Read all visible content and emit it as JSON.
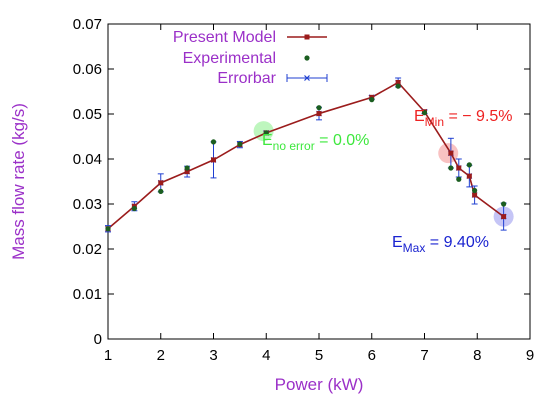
{
  "chart_data": {
    "type": "line",
    "xlabel": "Power (kW)",
    "ylabel": "Mass flow rate (kg/s)",
    "xlim": [
      1,
      9
    ],
    "ylim": [
      0,
      0.07
    ],
    "x_ticks": [
      "1",
      "2",
      "3",
      "4",
      "5",
      "6",
      "7",
      "8",
      "9"
    ],
    "y_ticks": [
      "0",
      "0.01",
      "0.02",
      "0.03",
      "0.04",
      "0.05",
      "0.06",
      "0.07"
    ],
    "series": [
      {
        "name": "Present Model",
        "color": "#9b1c1c",
        "x": [
          1.0,
          1.5,
          2.0,
          2.5,
          3.0,
          3.5,
          4.0,
          5.0,
          6.0,
          6.5,
          7.0,
          7.5,
          7.65,
          7.85,
          7.95,
          8.5
        ],
        "y": [
          0.0245,
          0.0295,
          0.0347,
          0.0372,
          0.0398,
          0.0432,
          0.0458,
          0.0501,
          0.0537,
          0.057,
          0.0505,
          0.0413,
          0.038,
          0.0362,
          0.032,
          0.0272
        ]
      },
      {
        "name": "Experimental",
        "color": "#1b5e20",
        "x": [
          1.0,
          1.5,
          2.0,
          2.5,
          3.0,
          3.5,
          4.0,
          5.0,
          6.0,
          6.5,
          7.0,
          7.5,
          7.65,
          7.85,
          7.95,
          8.5
        ],
        "y": [
          0.0245,
          0.029,
          0.0328,
          0.038,
          0.0438,
          0.0433,
          0.0458,
          0.0514,
          0.0532,
          0.0562,
          0.0503,
          0.038,
          0.0355,
          0.0387,
          0.033,
          0.03
        ]
      },
      {
        "name": "Errorbar",
        "color": "#1f3fd1",
        "x": [
          1.0,
          1.5,
          2.0,
          2.5,
          3.0,
          3.5,
          4.0,
          5.0,
          6.0,
          6.5,
          7.0,
          7.5,
          7.65,
          7.85,
          7.95,
          8.5
        ],
        "y": [
          0.0245,
          0.0295,
          0.0347,
          0.0372,
          0.0398,
          0.0432,
          0.0458,
          0.0501,
          0.0537,
          0.057,
          0.0505,
          0.0413,
          0.038,
          0.0362,
          0.032,
          0.0272
        ],
        "err": [
          0.0007,
          0.001,
          0.002,
          0.0012,
          0.004,
          0.0007,
          0.0004,
          0.0014,
          0.0004,
          0.001,
          0.0004,
          0.0033,
          0.002,
          0.0024,
          0.002,
          0.003
        ]
      }
    ],
    "annotations": [
      {
        "label": "E",
        "sub": "no error",
        "value": "= 0.0%",
        "x": 3.95,
        "y": 0.0462,
        "color": "#3ee83e",
        "halo": "rgba(70,230,70,0.35)"
      },
      {
        "label": "E",
        "sub": "Min",
        "value": "= − 9.5%",
        "x": 7.45,
        "y": 0.0413,
        "color": "#ee2222",
        "halo": "rgba(238,80,80,0.35)"
      },
      {
        "label": "E",
        "sub": "Max",
        "value": "= 9.40%",
        "x": 8.5,
        "y": 0.0272,
        "color": "#1a23d0",
        "halo": "rgba(90,90,230,0.35)"
      }
    ],
    "legend_position": "top-left",
    "grid": false
  }
}
